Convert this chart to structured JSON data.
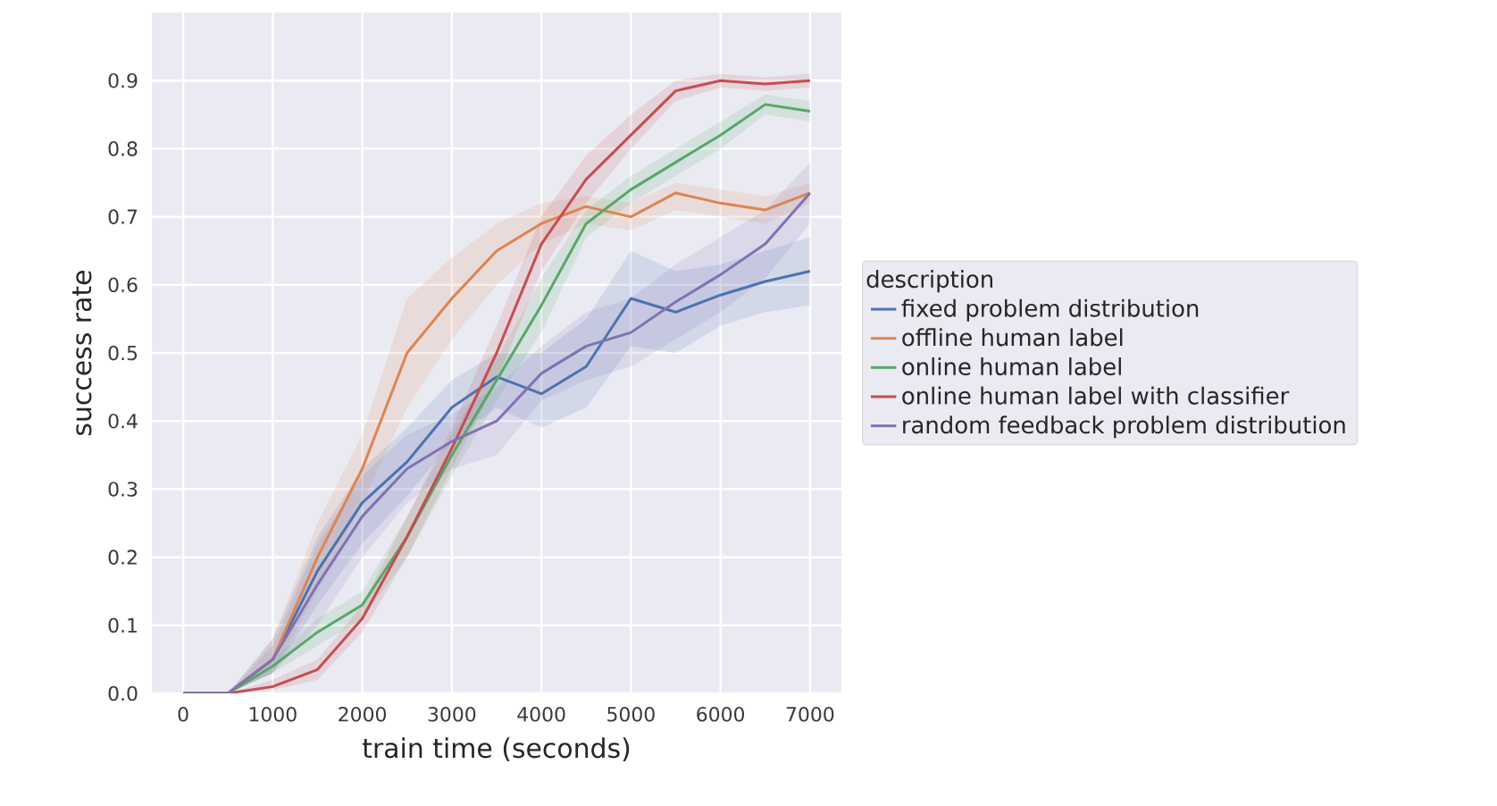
{
  "chart_data": {
    "type": "line",
    "xlabel": "train time (seconds)",
    "ylabel": "success rate",
    "legend_title": "description",
    "legend": "right",
    "grid": true,
    "x": [
      0,
      500,
      1000,
      1500,
      2000,
      2500,
      3000,
      3500,
      4000,
      4500,
      5000,
      5500,
      6000,
      6500,
      7000
    ],
    "xlim": [
      -350,
      7350
    ],
    "xticks": [
      0,
      1000,
      2000,
      3000,
      4000,
      5000,
      6000,
      7000
    ],
    "ylim": [
      0,
      1.0
    ],
    "yticks": [
      {
        "value": 0,
        "label": "0.0"
      },
      0.1,
      0.2,
      0.3,
      0.4,
      0.5,
      0.6,
      0.7,
      0.8,
      0.9
    ],
    "series": [
      {
        "name": "fixed problem distribution",
        "color": "#4c72b0",
        "values": [
          0,
          0,
          0.05,
          0.18,
          0.28,
          0.34,
          0.42,
          0.465,
          0.44,
          0.48,
          0.58,
          0.56,
          0.585,
          0.605,
          0.62
        ],
        "lower": [
          0,
          0,
          0.03,
          0.13,
          0.22,
          0.29,
          0.37,
          0.42,
          0.39,
          0.42,
          0.51,
          0.5,
          0.54,
          0.56,
          0.57
        ],
        "upper": [
          0,
          0,
          0.08,
          0.23,
          0.33,
          0.39,
          0.46,
          0.5,
          0.5,
          0.55,
          0.65,
          0.62,
          0.63,
          0.65,
          0.67
        ]
      },
      {
        "name": "offline human label",
        "color": "#dd8452",
        "values": [
          0,
          0,
          0.05,
          0.2,
          0.33,
          0.5,
          0.58,
          0.65,
          0.69,
          0.715,
          0.7,
          0.735,
          0.72,
          0.71,
          0.735
        ],
        "lower": [
          0,
          0,
          0.03,
          0.15,
          0.28,
          0.42,
          0.52,
          0.6,
          0.66,
          0.69,
          0.68,
          0.71,
          0.7,
          0.69,
          0.72
        ],
        "upper": [
          0,
          0,
          0.08,
          0.25,
          0.38,
          0.58,
          0.64,
          0.69,
          0.72,
          0.73,
          0.72,
          0.75,
          0.74,
          0.73,
          0.75
        ]
      },
      {
        "name": "online human label",
        "color": "#55a868",
        "values": [
          0,
          0,
          0.04,
          0.09,
          0.13,
          0.23,
          0.35,
          0.46,
          0.57,
          0.69,
          0.74,
          0.78,
          0.82,
          0.865,
          0.855
        ],
        "lower": [
          0,
          0,
          0.03,
          0.07,
          0.11,
          0.2,
          0.32,
          0.43,
          0.53,
          0.67,
          0.72,
          0.76,
          0.8,
          0.85,
          0.84
        ],
        "upper": [
          0,
          0,
          0.05,
          0.11,
          0.15,
          0.26,
          0.38,
          0.49,
          0.61,
          0.71,
          0.76,
          0.8,
          0.84,
          0.88,
          0.87
        ]
      },
      {
        "name": "online human label with classifier",
        "color": "#c44e52",
        "values": [
          0,
          0,
          0.01,
          0.035,
          0.11,
          0.23,
          0.36,
          0.5,
          0.66,
          0.755,
          0.82,
          0.885,
          0.9,
          0.895,
          0.9
        ],
        "lower": [
          0,
          0,
          0.005,
          0.02,
          0.09,
          0.2,
          0.33,
          0.46,
          0.62,
          0.72,
          0.8,
          0.87,
          0.89,
          0.885,
          0.89
        ],
        "upper": [
          0,
          0,
          0.02,
          0.05,
          0.13,
          0.26,
          0.39,
          0.54,
          0.7,
          0.79,
          0.85,
          0.9,
          0.91,
          0.905,
          0.91
        ]
      },
      {
        "name": "random feedback problem distribution",
        "color": "#8172b3",
        "values": [
          0,
          0,
          0.05,
          0.16,
          0.26,
          0.33,
          0.37,
          0.4,
          0.47,
          0.51,
          0.53,
          0.575,
          0.615,
          0.66,
          0.735
        ],
        "lower": [
          0,
          0,
          0.03,
          0.1,
          0.2,
          0.28,
          0.33,
          0.35,
          0.43,
          0.46,
          0.48,
          0.52,
          0.56,
          0.61,
          0.69
        ],
        "upper": [
          0,
          0,
          0.07,
          0.22,
          0.32,
          0.38,
          0.41,
          0.45,
          0.51,
          0.56,
          0.58,
          0.63,
          0.67,
          0.71,
          0.78
        ]
      }
    ]
  }
}
